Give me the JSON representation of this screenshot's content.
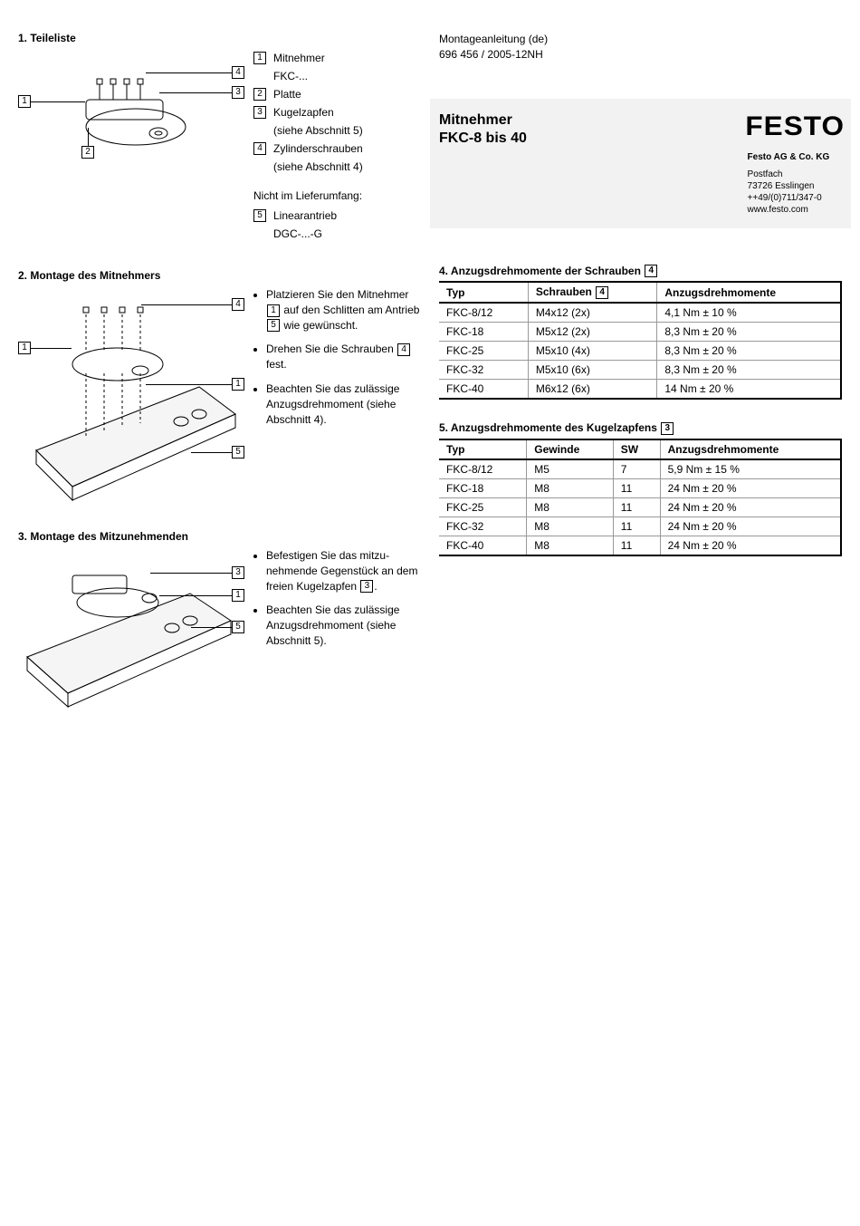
{
  "meta": {
    "doc_type": "Montageanleitung (de)",
    "doc_number": "696 456 / 2005-12NH"
  },
  "title": {
    "line1": "Mitnehmer",
    "line2": "FKC-8 bis 40"
  },
  "company": {
    "logo": "FESTO",
    "name": "Festo AG & Co. KG",
    "addr1": "Postfach",
    "addr2": "73726 Esslingen",
    "phone": "++49/(0)711/347-0",
    "url": "www.festo.com"
  },
  "section1": {
    "heading": "1. Teileliste",
    "parts": [
      {
        "num": "1",
        "label": "Mitnehmer",
        "sub": "FKC-..."
      },
      {
        "num": "2",
        "label": "Platte",
        "sub": null
      },
      {
        "num": "3",
        "label": "Kugelzapfen",
        "sub": "(siehe Abschnitt 5)"
      },
      {
        "num": "4",
        "label": "Zylinderschrauben",
        "sub": "(siehe Abschnitt 4)"
      }
    ],
    "not_included": {
      "note": "Nicht im Lieferumfang:",
      "items": [
        {
          "num": "5",
          "label": "Linearantrieb",
          "sub": "DGC-...-G"
        }
      ]
    },
    "callouts": {
      "c1": "1",
      "c2": "2",
      "c3": "3",
      "c4": "4"
    }
  },
  "section2": {
    "heading": "2. Montage des Mitnehmers",
    "bullet1_a": "Platzieren Sie den Mit­nehmer ",
    "bullet1_ref1": "1",
    "bullet1_b": " auf den Schlit­ten am Antrieb ",
    "bullet1_ref2": "5",
    "bullet1_c": " wie ge­wünscht.",
    "bullet2_a": "Drehen Sie die Schrauben ",
    "bullet2_ref": "4",
    "bullet2_b": " fest.",
    "bullet3": "Beachten Sie das zulässi­ge Anzugsdrehmoment (siehe Abschnitt 4).",
    "callouts": {
      "c1": "1",
      "c4": "4",
      "c5": "5",
      "c1b": "1"
    }
  },
  "section3": {
    "heading": "3. Montage des Mitzunehmenden",
    "bullet1_a": "Befestigen Sie das mitzu­nehmende Gegenstück an dem freien Kugelzapfen ",
    "bullet1_ref": "3",
    "bullet1_b": ".",
    "bullet2": "Beachten Sie das zulässi­ge Anzugsdrehmoment (siehe Abschnitt 5).",
    "callouts": {
      "c1": "1",
      "c3": "3",
      "c5": "5"
    }
  },
  "section4": {
    "heading": "4.  Anzugsdrehmomente der Schrauben ",
    "heading_ref": "4",
    "columns": [
      "Typ",
      "Schrauben",
      "Anzugsdrehmomente"
    ],
    "col_ref": "4",
    "rows": [
      [
        "FKC-8/12",
        "M4x12 (2x)",
        "4,1 Nm ± 10 %"
      ],
      [
        "FKC-18",
        "M5x12 (2x)",
        "8,3 Nm ± 20 %"
      ],
      [
        "FKC-25",
        "M5x10 (4x)",
        "8,3 Nm ± 20 %"
      ],
      [
        "FKC-32",
        "M5x10 (6x)",
        "8,3 Nm ± 20 %"
      ],
      [
        "FKC-40",
        "M6x12 (6x)",
        "14 Nm ± 20 %"
      ]
    ]
  },
  "section5": {
    "heading": "5.  Anzugsdrehmomente des Kugelzapfens ",
    "heading_ref": "3",
    "columns": [
      "Typ",
      "Gewinde",
      "SW",
      "Anzugsdrehmomente"
    ],
    "rows": [
      [
        "FKC-8/12",
        "M5",
        "7",
        "5,9 Nm ± 15 %"
      ],
      [
        "FKC-18",
        "M8",
        "11",
        "24 Nm ± 20 %"
      ],
      [
        "FKC-25",
        "M8",
        "11",
        "24 Nm ± 20 %"
      ],
      [
        "FKC-32",
        "M8",
        "11",
        "24 Nm ± 20 %"
      ],
      [
        "FKC-40",
        "M8",
        "11",
        "24 Nm ± 20 %"
      ]
    ]
  }
}
